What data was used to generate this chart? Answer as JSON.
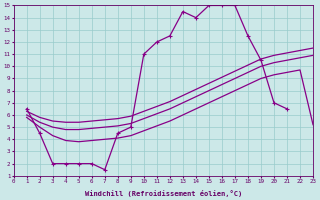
{
  "xlabel": "Windchill (Refroidissement éolien,°C)",
  "xlim": [
    0,
    23
  ],
  "ylim": [
    1,
    15
  ],
  "xticks": [
    0,
    1,
    2,
    3,
    4,
    5,
    6,
    7,
    8,
    9,
    10,
    11,
    12,
    13,
    14,
    15,
    16,
    17,
    18,
    19,
    20,
    21,
    22,
    23
  ],
  "yticks": [
    1,
    2,
    3,
    4,
    5,
    6,
    7,
    8,
    9,
    10,
    11,
    12,
    13,
    14,
    15
  ],
  "bg_color": "#cce8e8",
  "line_color": "#880088",
  "grid_color": "#99cccc",
  "line1_x": [
    1,
    2,
    3,
    4,
    5,
    6,
    7,
    8,
    9,
    10,
    11,
    12,
    13,
    14,
    15,
    16,
    17,
    18,
    19,
    20,
    21
  ],
  "line1_y": [
    6.5,
    4.5,
    2.0,
    2.0,
    2.0,
    2.0,
    1.5,
    4.5,
    5.0,
    11.0,
    12.0,
    12.5,
    14.5,
    14.0,
    15.0,
    15.0,
    15.0,
    12.5,
    10.5,
    7.0,
    6.5
  ],
  "line2_x": [
    1,
    2,
    3,
    4,
    5,
    6,
    7,
    8,
    9,
    10,
    11,
    12,
    13,
    14,
    15,
    16,
    17,
    18,
    19,
    20,
    21,
    22,
    23
  ],
  "line2_y": [
    6.3,
    5.8,
    5.5,
    5.4,
    5.4,
    5.5,
    5.6,
    5.7,
    5.9,
    6.3,
    6.7,
    7.1,
    7.6,
    8.1,
    8.6,
    9.1,
    9.6,
    10.1,
    10.6,
    10.9,
    11.1,
    11.3,
    11.5
  ],
  "line3_x": [
    1,
    2,
    3,
    4,
    5,
    6,
    7,
    8,
    9,
    10,
    11,
    12,
    13,
    14,
    15,
    16,
    17,
    18,
    19,
    20,
    21,
    22,
    23
  ],
  "line3_y": [
    6.0,
    5.4,
    5.0,
    4.8,
    4.8,
    4.9,
    5.0,
    5.1,
    5.3,
    5.7,
    6.1,
    6.5,
    7.0,
    7.5,
    8.0,
    8.5,
    9.0,
    9.5,
    10.0,
    10.3,
    10.5,
    10.7,
    10.9
  ],
  "line4_x": [
    1,
    2,
    3,
    4,
    5,
    6,
    7,
    8,
    9,
    10,
    11,
    12,
    13,
    14,
    15,
    16,
    17,
    18,
    19,
    20,
    21,
    22,
    23
  ],
  "line4_y": [
    5.8,
    5.0,
    4.3,
    3.9,
    3.8,
    3.9,
    4.0,
    4.1,
    4.3,
    4.7,
    5.1,
    5.5,
    6.0,
    6.5,
    7.0,
    7.5,
    8.0,
    8.5,
    9.0,
    9.3,
    9.5,
    9.7,
    5.2
  ]
}
